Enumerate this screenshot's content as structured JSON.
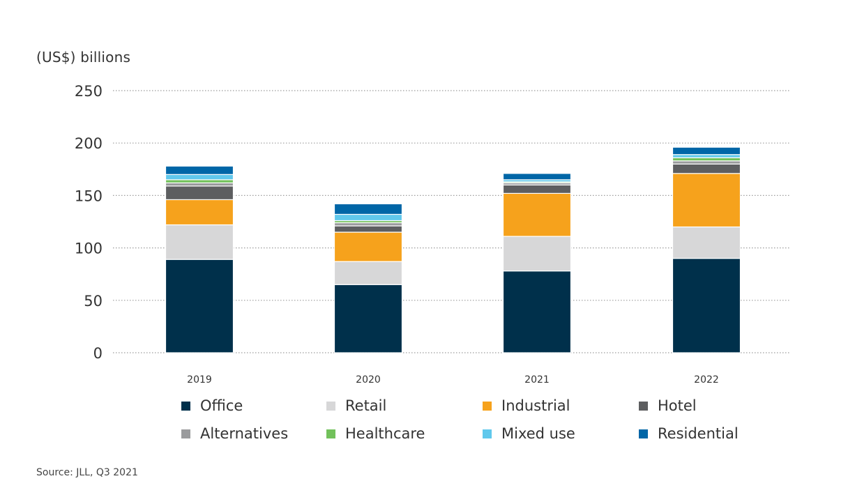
{
  "chart_data": {
    "type": "bar",
    "stacked": true,
    "ylabel": "(US$) billions",
    "source": "Source: JLL, Q3 2021",
    "ylim": [
      0,
      250
    ],
    "yticks": [
      0,
      50,
      100,
      150,
      200,
      250
    ],
    "grid": true,
    "legend_position": "bottom",
    "categories": [
      "2019",
      "2020",
      "2021",
      "2022"
    ],
    "series": [
      {
        "name": "Office",
        "color": "#00304b",
        "values": [
          89,
          65,
          78,
          90
        ]
      },
      {
        "name": "Retail",
        "color": "#d7d7d8",
        "values": [
          33,
          22,
          33,
          30
        ]
      },
      {
        "name": "Industrial",
        "color": "#f6a21c",
        "values": [
          24,
          28,
          41,
          51
        ]
      },
      {
        "name": "Hotel",
        "color": "#5d5e60",
        "values": [
          13,
          6,
          8,
          9
        ]
      },
      {
        "name": "Alternatives",
        "color": "#9a9b9d",
        "values": [
          3,
          3,
          2,
          3
        ]
      },
      {
        "name": "Healthcare",
        "color": "#72c15b",
        "values": [
          3,
          2,
          1,
          3
        ]
      },
      {
        "name": "Mixed use",
        "color": "#60c8ec",
        "values": [
          5,
          6,
          2,
          3
        ]
      },
      {
        "name": "Residential",
        "color": "#0066a7",
        "values": [
          8,
          10,
          6,
          7
        ]
      }
    ]
  }
}
